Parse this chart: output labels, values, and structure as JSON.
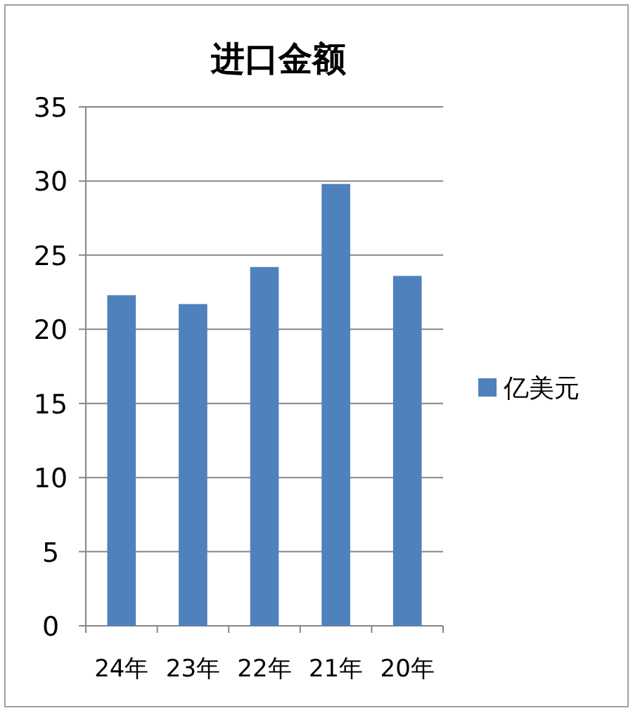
{
  "chart_data": {
    "type": "bar",
    "title": "进口金额",
    "categories": [
      "24年",
      "23年",
      "22年",
      "21年",
      "20年"
    ],
    "series": [
      {
        "name": "亿美元",
        "color": "#4f81bd",
        "values": [
          22.3,
          21.7,
          24.2,
          29.8,
          23.6
        ]
      }
    ],
    "ylim": [
      0,
      35
    ],
    "yticks": [
      0,
      5,
      10,
      15,
      20,
      25,
      30,
      35
    ],
    "grid": "y",
    "legend": "right"
  }
}
